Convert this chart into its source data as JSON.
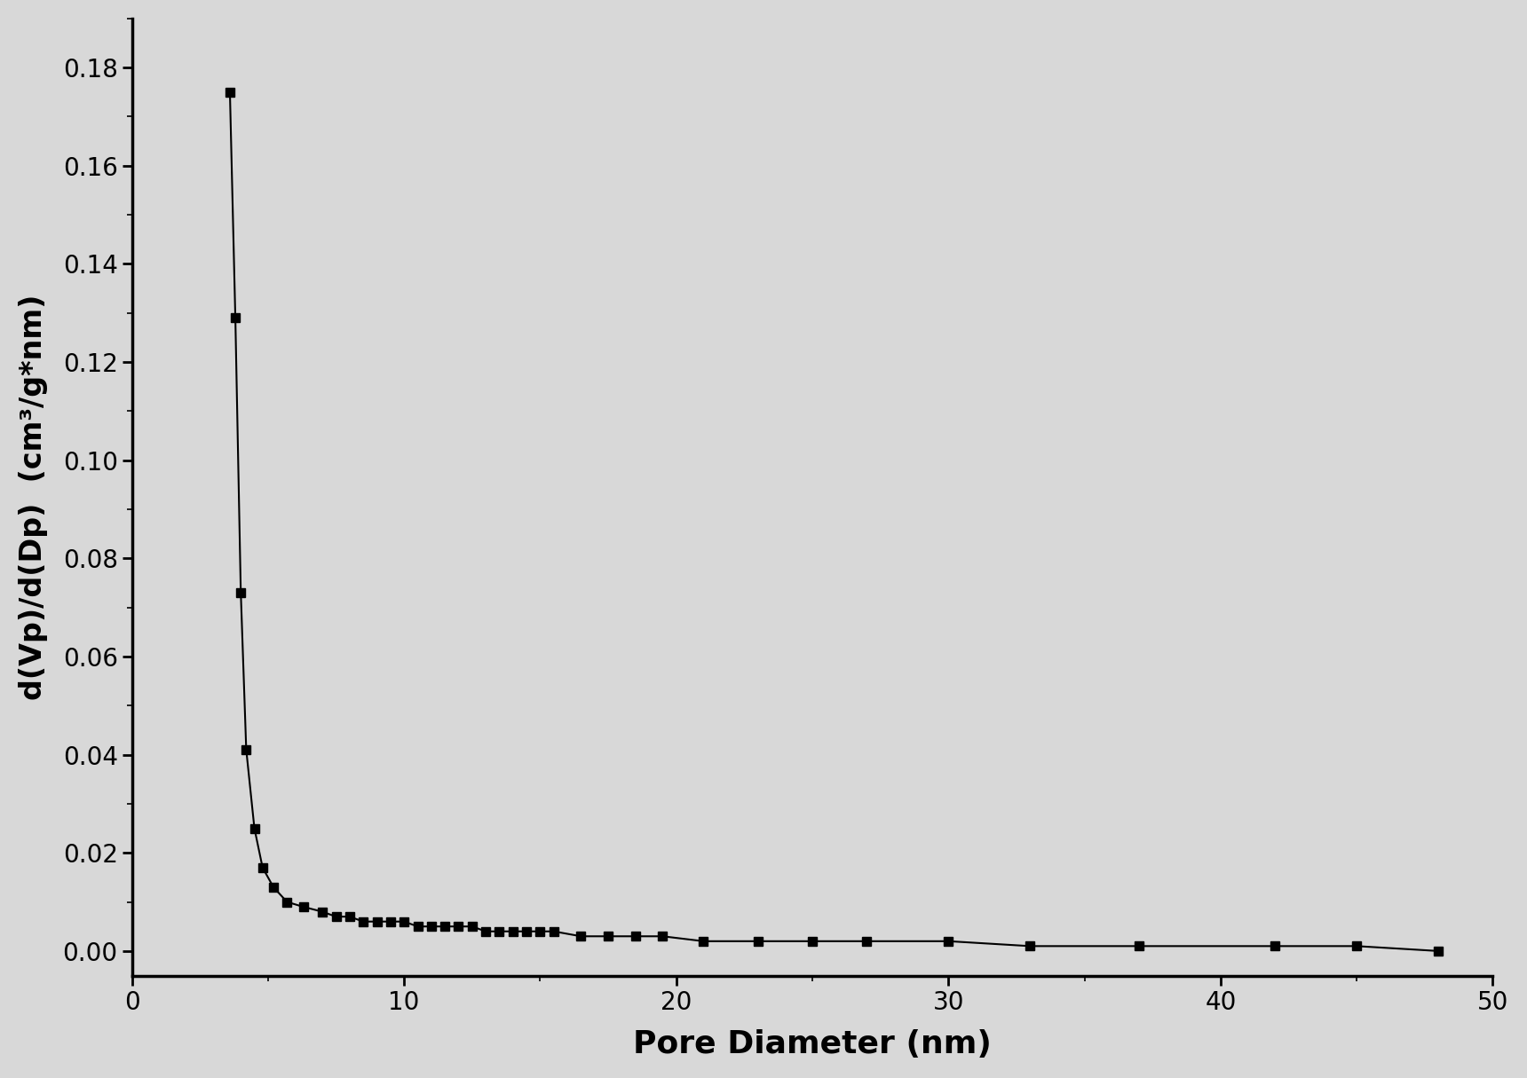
{
  "x": [
    3.6,
    3.8,
    4.0,
    4.2,
    4.5,
    4.8,
    5.2,
    5.7,
    6.3,
    7.0,
    7.5,
    8.0,
    8.5,
    9.0,
    9.5,
    10.0,
    10.5,
    11.0,
    11.5,
    12.0,
    12.5,
    13.0,
    13.5,
    14.0,
    14.5,
    15.0,
    15.5,
    16.5,
    17.5,
    18.5,
    19.5,
    21.0,
    23.0,
    25.0,
    27.0,
    30.0,
    33.0,
    37.0,
    42.0,
    45.0,
    48.0
  ],
  "y": [
    0.175,
    0.129,
    0.073,
    0.041,
    0.025,
    0.017,
    0.013,
    0.01,
    0.009,
    0.008,
    0.007,
    0.007,
    0.006,
    0.006,
    0.006,
    0.006,
    0.005,
    0.005,
    0.005,
    0.005,
    0.005,
    0.004,
    0.004,
    0.004,
    0.004,
    0.004,
    0.004,
    0.003,
    0.003,
    0.003,
    0.003,
    0.002,
    0.002,
    0.002,
    0.002,
    0.002,
    0.001,
    0.001,
    0.001,
    0.001,
    0.0
  ],
  "xlabel": "Pore Diameter (nm)",
  "ylabel": "d(Vp)/d(Dp)  (cm³/g*nm)",
  "xlim": [
    0,
    50
  ],
  "ylim": [
    -0.005,
    0.19
  ],
  "xticks": [
    0,
    10,
    20,
    30,
    40,
    50
  ],
  "yticks": [
    0.0,
    0.02,
    0.04,
    0.06,
    0.08,
    0.1,
    0.12,
    0.14,
    0.16,
    0.18
  ],
  "line_color": "#000000",
  "marker_color": "#000000",
  "background_color": "#d8d8d8",
  "plot_bg_color": "#d8d8d8",
  "xlabel_fontsize": 26,
  "ylabel_fontsize": 24,
  "tick_fontsize": 20,
  "line_width": 1.5,
  "marker_size": 7
}
